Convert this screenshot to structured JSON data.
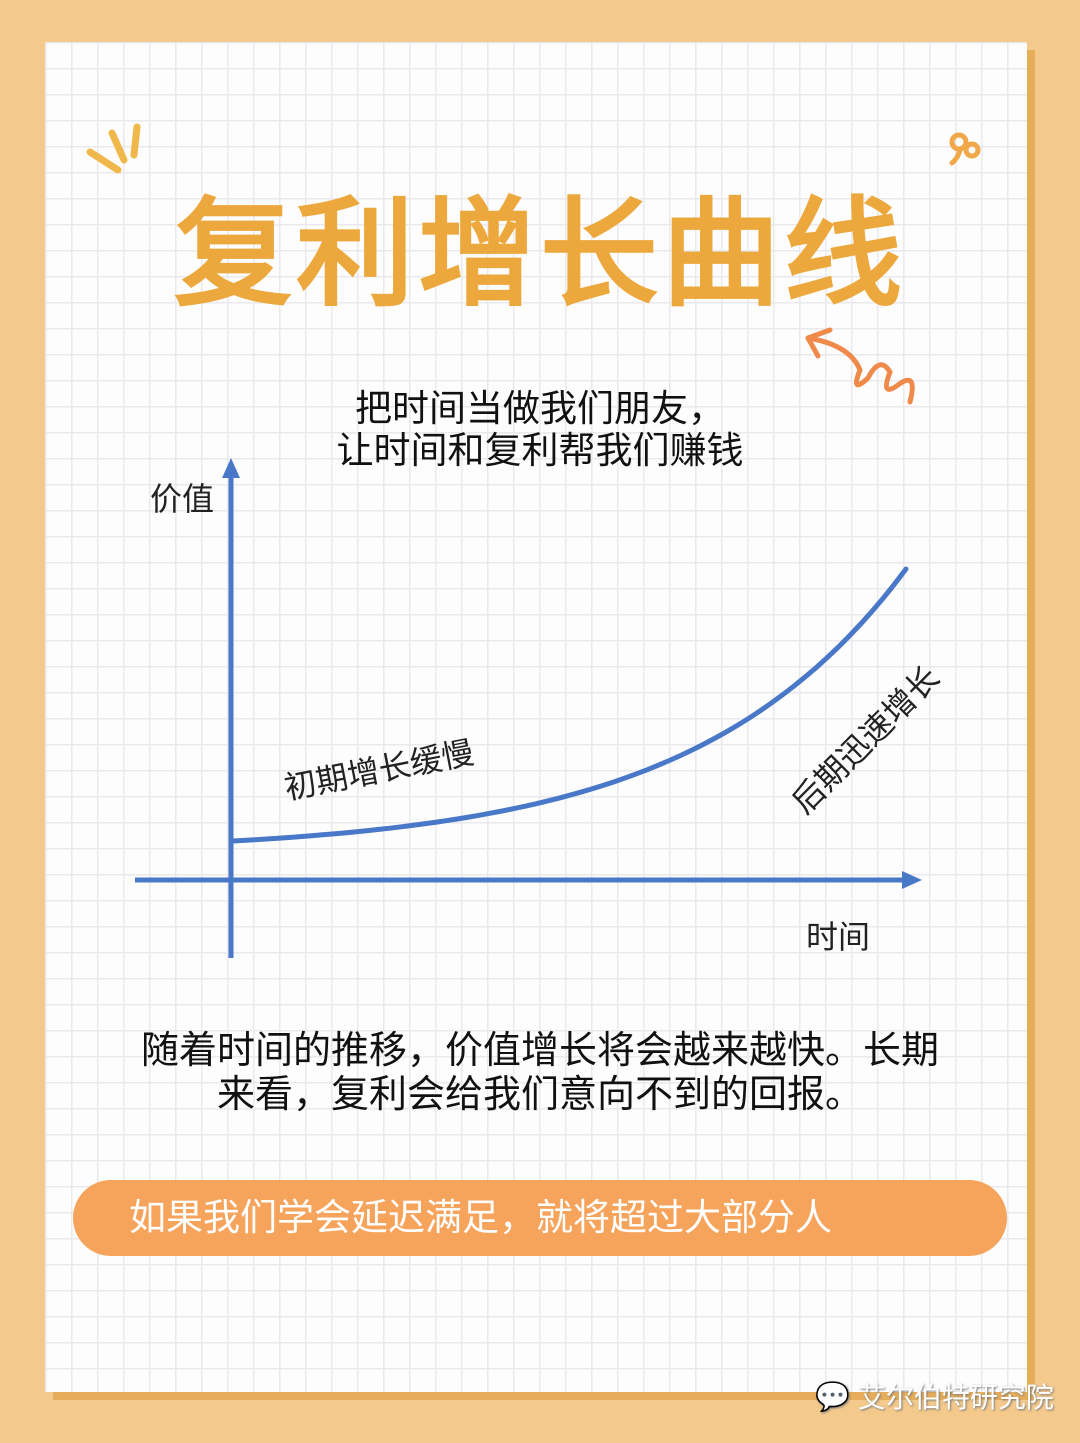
{
  "title": "复利增长曲线",
  "subtitle": [
    "把时间当做我们朋友，",
    "让时间和复利帮我们赚钱"
  ],
  "diagram": {
    "y_axis_label": "价值",
    "x_axis_label": "时间",
    "early_label": "初期增长缓慢",
    "late_label": "后期迅速增长",
    "curve_color": "#4a78c8",
    "curve_shape": "exponential"
  },
  "description": [
    "随着时间的推移，价值增长将会越来越快。长期",
    "来看，复利会给我们意向不到的回报。"
  ],
  "banner": "如果我们学会延迟满足，就将超过大部分人",
  "watermark": "艾尔伯特研究院",
  "colors": {
    "background": "#f4c98c",
    "title": "#eca83c",
    "banner": "#f6a35c",
    "axis": "#4a78c8"
  }
}
